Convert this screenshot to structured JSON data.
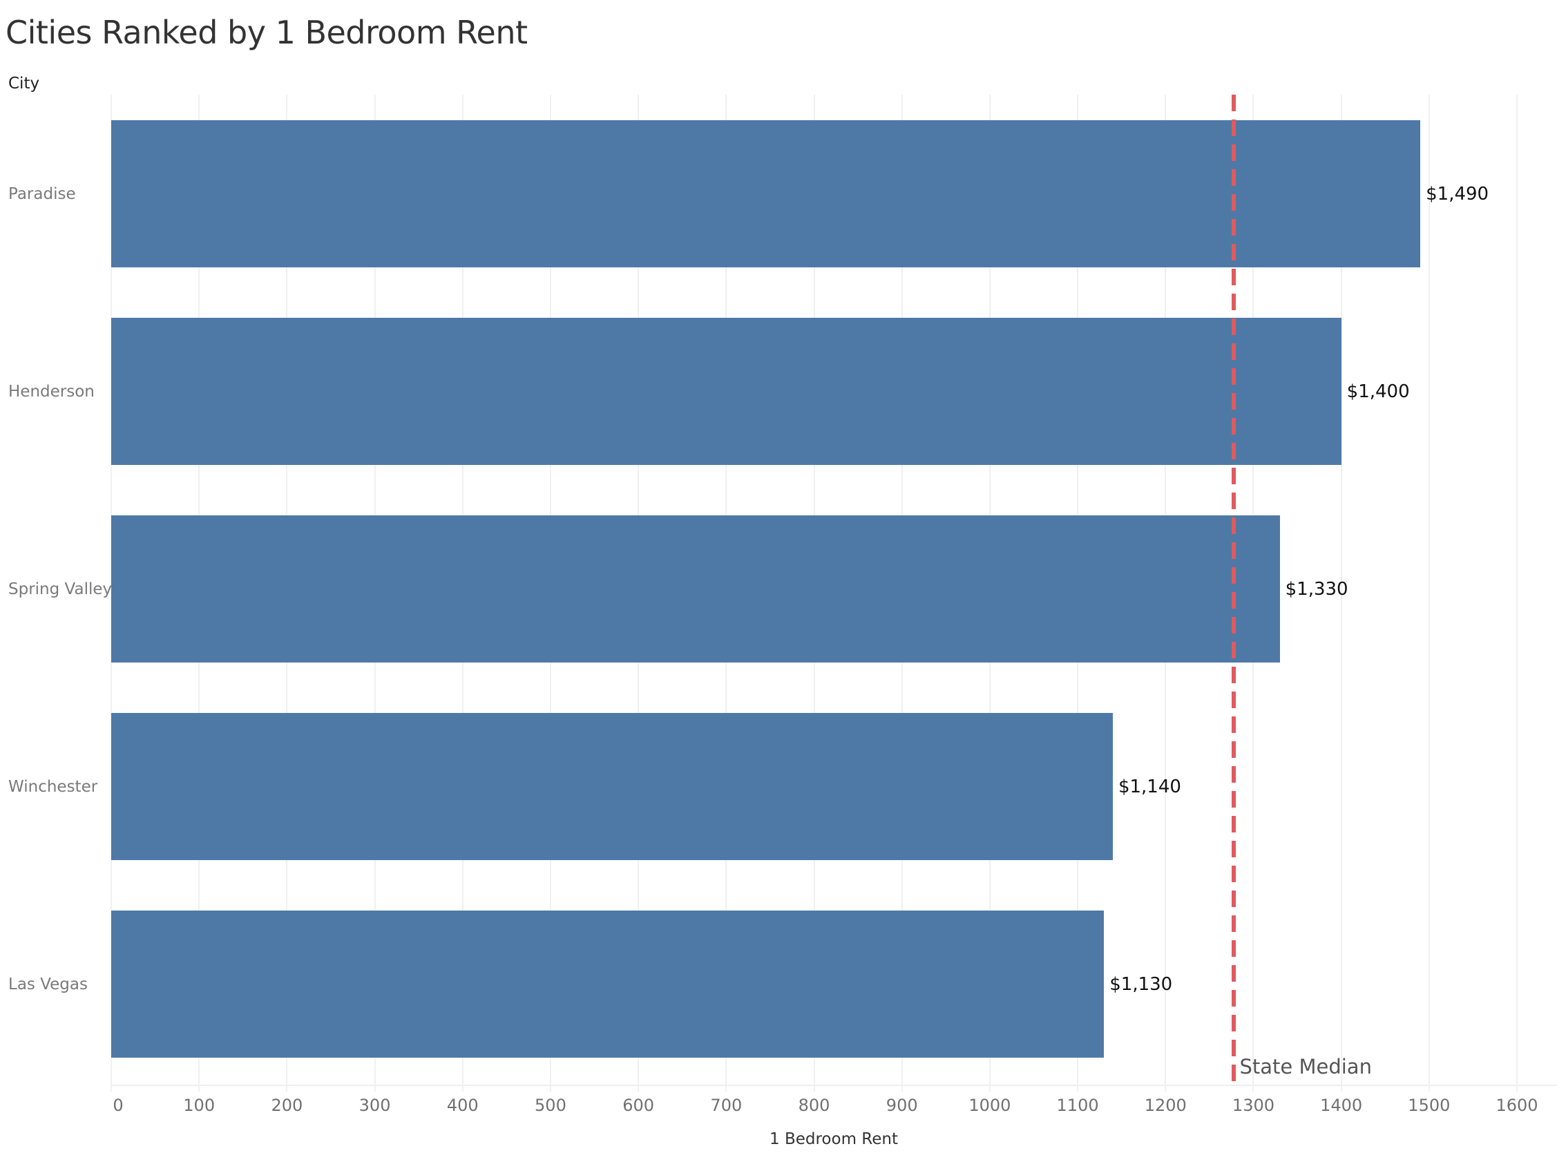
{
  "title": "Cities Ranked by 1 Bedroom Rent",
  "row_header": "City",
  "x_axis_title": "1 Bedroom Rent",
  "colors": {
    "bar": "#4e79a7",
    "reference_line": "#e05a5e"
  },
  "reference_line": {
    "label": "State Median",
    "value": 1278
  },
  "ticks": [
    "0",
    "100",
    "200",
    "300",
    "400",
    "500",
    "600",
    "700",
    "800",
    "900",
    "1000",
    "1100",
    "1200",
    "1300",
    "1400",
    "1500",
    "1600"
  ],
  "bars": [
    {
      "city": "Paradise",
      "value": 1490,
      "label": "$1,490"
    },
    {
      "city": "Henderson",
      "value": 1400,
      "label": "$1,400"
    },
    {
      "city": "Spring Valley",
      "value": 1330,
      "label": "$1,330"
    },
    {
      "city": "Winchester",
      "value": 1140,
      "label": "$1,140"
    },
    {
      "city": "Las Vegas",
      "value": 1130,
      "label": "$1,130"
    }
  ],
  "chart_data": {
    "type": "bar",
    "orientation": "horizontal",
    "title": "Cities Ranked by 1 Bedroom Rent",
    "xlabel": "1 Bedroom Rent",
    "ylabel": "City",
    "categories": [
      "Paradise",
      "Henderson",
      "Spring Valley",
      "Winchester",
      "Las Vegas"
    ],
    "values": [
      1490,
      1400,
      1330,
      1140,
      1130
    ],
    "data_labels": [
      "$1,490",
      "$1,400",
      "$1,330",
      "$1,140",
      "$1,130"
    ],
    "xlim": [
      0,
      1600
    ],
    "x_ticks": [
      0,
      100,
      200,
      300,
      400,
      500,
      600,
      700,
      800,
      900,
      1000,
      1100,
      1200,
      1300,
      1400,
      1500,
      1600
    ],
    "grid": "vertical",
    "reference_lines": [
      {
        "label": "State Median",
        "value": 1278,
        "style": "dashed",
        "color": "#e05a5e"
      }
    ],
    "legend": "none"
  }
}
